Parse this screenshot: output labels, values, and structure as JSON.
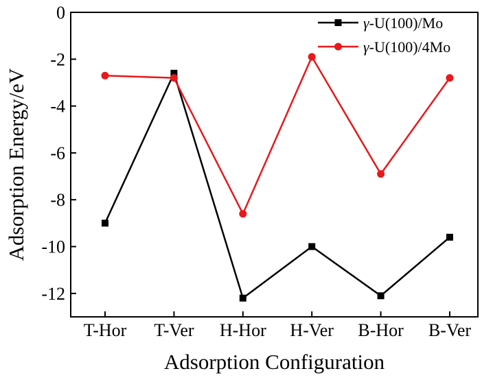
{
  "chart_data": {
    "type": "line",
    "title": "",
    "xlabel": "Adsorption Configuration",
    "ylabel": "Adsorption Energy/eV",
    "categories": [
      "T-Hor",
      "T-Ver",
      "H-Hor",
      "H-Ver",
      "B-Hor",
      "B-Ver"
    ],
    "ylim": [
      -13,
      0
    ],
    "yticks": [
      0,
      -2,
      -4,
      -6,
      -8,
      -10,
      -12
    ],
    "ytick_labels": [
      "0",
      "-2",
      "-4",
      "-6",
      "-8",
      "-10",
      "-12"
    ],
    "grid": false,
    "legend_position": "top-right",
    "series": [
      {
        "name": "γ-U(100)/Mo",
        "name_symbol": "γ",
        "name_rest": "-U(100)/Mo",
        "color": "#000000",
        "marker": "square",
        "values": [
          -9.0,
          -2.6,
          -12.2,
          -10.0,
          -12.1,
          -9.6
        ]
      },
      {
        "name": "γ-U(100)/4Mo",
        "name_symbol": "γ",
        "name_rest": "-U(100)/4Mo",
        "color": "#e8181b",
        "marker": "circle",
        "values": [
          -2.7,
          -2.8,
          -8.6,
          -1.9,
          -6.9,
          -2.8
        ]
      }
    ]
  }
}
